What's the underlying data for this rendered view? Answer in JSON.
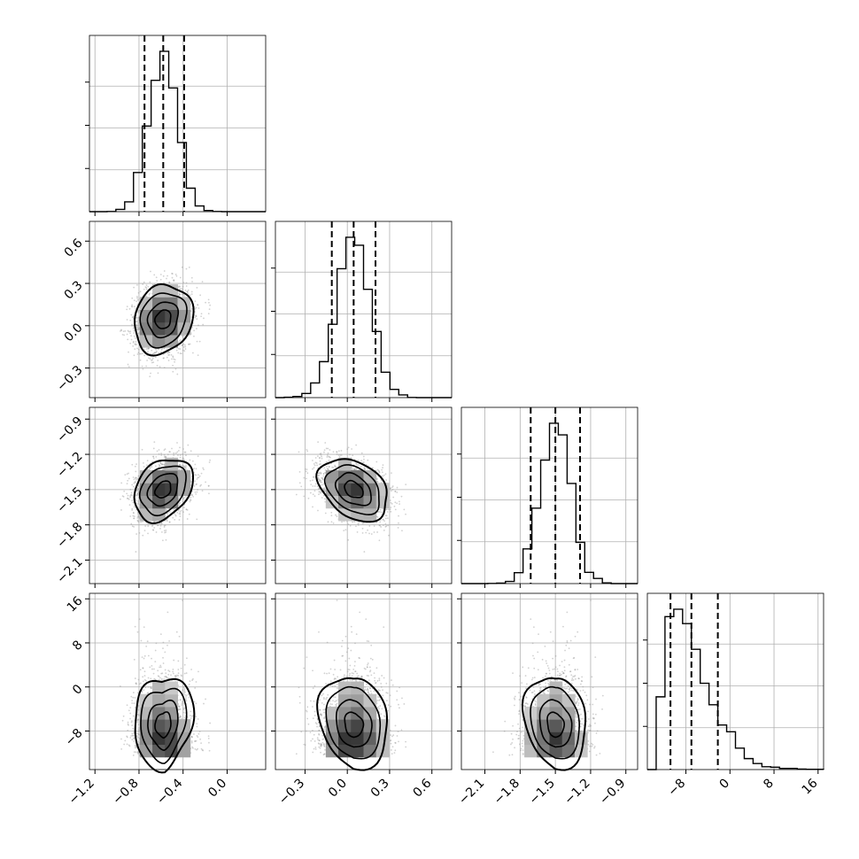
{
  "chart_data": {
    "type": "corner",
    "params": [
      {
        "range": [
          -1.25,
          0.35
        ],
        "ticks": [
          -1.2,
          -0.8,
          -0.4,
          0.0
        ],
        "tick_labels": [
          "−1.2",
          "−0.8",
          "−0.4",
          "0.0"
        ],
        "mean": -0.58,
        "sd": 0.13,
        "quantiles": [
          -0.75,
          -0.58,
          -0.39
        ]
      },
      {
        "range": [
          -0.51,
          0.74
        ],
        "ticks": [
          -0.3,
          0.0,
          0.3,
          0.6
        ],
        "tick_labels": [
          "−0.3",
          "0.0",
          "0.3",
          "0.6"
        ],
        "mean": 0.045,
        "sd": 0.12,
        "quantiles": [
          -0.11,
          0.045,
          0.2
        ]
      },
      {
        "range": [
          -2.3,
          -0.8
        ],
        "ticks": [
          -2.1,
          -1.8,
          -1.5,
          -1.2,
          -0.9
        ],
        "tick_labels": [
          "−2.1",
          "−1.8",
          "−1.5",
          "−1.2",
          "−0.9"
        ],
        "mean": -1.5,
        "sd": 0.13,
        "quantiles": [
          -1.71,
          -1.5,
          -1.29
        ]
      },
      {
        "range": [
          -15,
          17
        ],
        "ticks": [
          -8,
          0,
          8,
          16
        ],
        "tick_labels": [
          "−8",
          "0",
          "8",
          "16"
        ],
        "mean": -7.0,
        "sd": 4.0,
        "quantiles": [
          -10.8,
          -7.0,
          -2.2
        ]
      }
    ],
    "correlations": [
      [
        0,
        1,
        0.15
      ],
      [
        0,
        2,
        0.3
      ],
      [
        1,
        2,
        -0.35
      ],
      [
        0,
        3,
        -0.05
      ],
      [
        1,
        3,
        0.0
      ],
      [
        2,
        3,
        0.0
      ]
    ],
    "diag_ticks": {
      "p0": [
        0.0,
        0.33,
        0.66,
        1.0
      ]
    },
    "grid": true,
    "quantile_style": "dashed",
    "contour_levels": 3
  }
}
